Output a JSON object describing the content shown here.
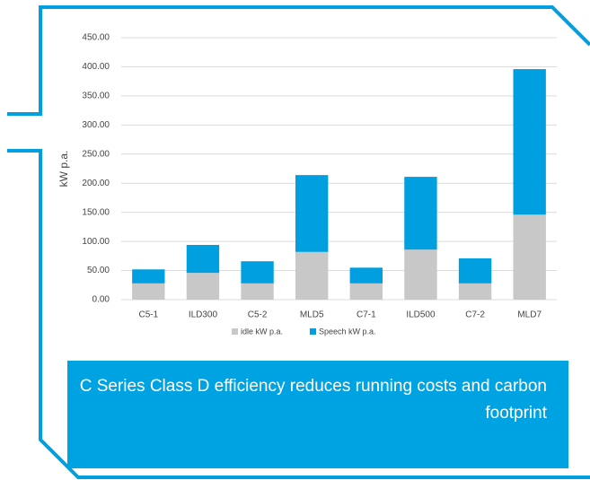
{
  "chart_data": {
    "type": "bar",
    "stacked": true,
    "ylabel": "kW p.a.",
    "categories": [
      "C5-1",
      "ILD300",
      "C5-2",
      "MLD5",
      "C7-1",
      "ILD500",
      "C7-2",
      "MLD7"
    ],
    "series": [
      {
        "name": "idle kW p.a.",
        "color": "#c8c8c8",
        "values": [
          28,
          46,
          28,
          82,
          28,
          86,
          28,
          146
        ]
      },
      {
        "name": "Speech kW p.a.",
        "color": "#00a0e0",
        "values": [
          24,
          48,
          38,
          132,
          27,
          125,
          43,
          250
        ]
      }
    ],
    "ylim": [
      0,
      450
    ],
    "yticks": [
      {
        "value": 0,
        "label": "0.00"
      },
      {
        "value": 50,
        "label": "50.00"
      },
      {
        "value": 100,
        "label": "100.00"
      },
      {
        "value": 150,
        "label": "150.00"
      },
      {
        "value": 200,
        "label": "200.00"
      },
      {
        "value": 250,
        "label": "250.00"
      },
      {
        "value": 300,
        "label": "300.00"
      },
      {
        "value": 350,
        "label": "350.00"
      },
      {
        "value": 400,
        "label": "400.00"
      },
      {
        "value": 450,
        "label": "450.00"
      }
    ],
    "grid": true,
    "legend": "bottom"
  },
  "caption": "C Series Class D efficiency reduces running costs and carbon footprint"
}
